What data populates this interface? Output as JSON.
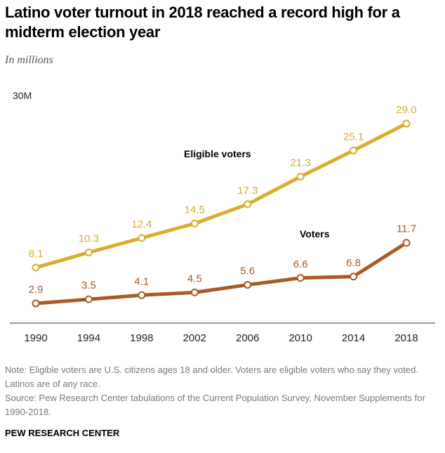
{
  "title": "Latino voter turnout in 2018 reached a record high for a midterm election year",
  "subtitle": "In millions",
  "note": "Note: Eligible voters are U.S. citizens ages 18 and older. Voters are eligible voters who say they voted. Latinos are of any race.",
  "source": "Source: Pew Research Center tabulations of the Current Population Survey, November Supplements for 1990-2018.",
  "brand": "PEW RESEARCH CENTER",
  "colors": {
    "eligible": "#d9ad2d",
    "voters": "#aa5a26",
    "axis": "#999999"
  },
  "chart_data": {
    "type": "line",
    "title": "Latino voter turnout in 2018 reached a record high for a midterm election year",
    "subtitle": "In millions",
    "xlabel": "",
    "ylabel": "",
    "x": [
      "1990",
      "1994",
      "1998",
      "2002",
      "2006",
      "2010",
      "2014",
      "2018"
    ],
    "ylim": [
      0,
      30
    ],
    "y_tick_label": "30M",
    "grid": false,
    "legend": "inline labels",
    "series": [
      {
        "name": "Eligible voters",
        "values": [
          8.1,
          10.3,
          12.4,
          14.5,
          17.3,
          21.3,
          25.1,
          29.0
        ],
        "labels": [
          "8.1",
          "10.3",
          "12.4",
          "14.5",
          "17.3",
          "21.3",
          "25.1",
          "29.0"
        ]
      },
      {
        "name": "Voters",
        "values": [
          2.9,
          3.5,
          4.1,
          4.5,
          5.6,
          6.6,
          6.8,
          11.7
        ],
        "labels": [
          "2.9",
          "3.5",
          "4.1",
          "4.5",
          "5.6",
          "6.6",
          "6.8",
          "11.7"
        ]
      }
    ]
  }
}
